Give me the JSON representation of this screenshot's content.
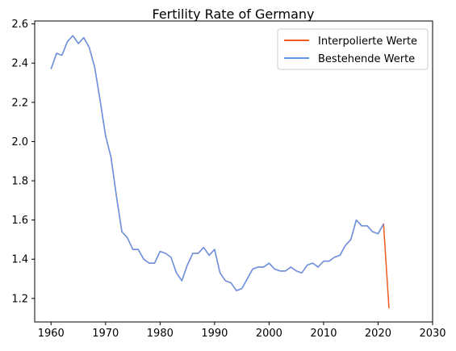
{
  "chart_data": {
    "type": "line",
    "title": "Fertility Rate of Germany",
    "xlabel": "",
    "ylabel": "",
    "xlim": [
      1957,
      2030
    ],
    "ylim": [
      1.08,
      2.615
    ],
    "xticks": [
      1960,
      1970,
      1980,
      1990,
      2000,
      2010,
      2020,
      2030
    ],
    "yticks": [
      1.2,
      1.4,
      1.6,
      1.8,
      2.0,
      2.2,
      2.4,
      2.6
    ],
    "grid": false,
    "legend_position": "top-right",
    "series": [
      {
        "name": "Interpolierte Werte",
        "color": "#f05a1e",
        "x": [
          1960,
          1961,
          1962,
          1963,
          1964,
          1965,
          1966,
          1967,
          1968,
          1969,
          1970,
          1971,
          1972,
          1973,
          1974,
          1975,
          1976,
          1977,
          1978,
          1979,
          1980,
          1981,
          1982,
          1983,
          1984,
          1985,
          1986,
          1987,
          1988,
          1989,
          1990,
          1991,
          1992,
          1993,
          1994,
          1995,
          1996,
          1997,
          1998,
          1999,
          2000,
          2001,
          2002,
          2003,
          2004,
          2005,
          2006,
          2007,
          2008,
          2009,
          2010,
          2011,
          2012,
          2013,
          2014,
          2015,
          2016,
          2017,
          2018,
          2019,
          2020,
          2021,
          2022
        ],
        "values": [
          2.37,
          2.45,
          2.44,
          2.51,
          2.54,
          2.5,
          2.53,
          2.48,
          2.38,
          2.21,
          2.03,
          1.92,
          1.72,
          1.54,
          1.51,
          1.45,
          1.45,
          1.4,
          1.38,
          1.38,
          1.44,
          1.43,
          1.41,
          1.33,
          1.29,
          1.37,
          1.43,
          1.43,
          1.46,
          1.42,
          1.45,
          1.33,
          1.29,
          1.28,
          1.24,
          1.25,
          1.3,
          1.35,
          1.36,
          1.36,
          1.38,
          1.35,
          1.34,
          1.34,
          1.36,
          1.34,
          1.33,
          1.37,
          1.38,
          1.36,
          1.39,
          1.39,
          1.41,
          1.42,
          1.47,
          1.5,
          1.6,
          1.57,
          1.57,
          1.54,
          1.53,
          1.58,
          1.15
        ]
      },
      {
        "name": "Bestehende Werte",
        "color": "#6495ed",
        "x": [
          1960,
          1961,
          1962,
          1963,
          1964,
          1965,
          1966,
          1967,
          1968,
          1969,
          1970,
          1971,
          1972,
          1973,
          1974,
          1975,
          1976,
          1977,
          1978,
          1979,
          1980,
          1981,
          1982,
          1983,
          1984,
          1985,
          1986,
          1987,
          1988,
          1989,
          1990,
          1991,
          1992,
          1993,
          1994,
          1995,
          1996,
          1997,
          1998,
          1999,
          2000,
          2001,
          2002,
          2003,
          2004,
          2005,
          2006,
          2007,
          2008,
          2009,
          2010,
          2011,
          2012,
          2013,
          2014,
          2015,
          2016,
          2017,
          2018,
          2019,
          2020,
          2021
        ],
        "values": [
          2.37,
          2.45,
          2.44,
          2.51,
          2.54,
          2.5,
          2.53,
          2.48,
          2.38,
          2.21,
          2.03,
          1.92,
          1.72,
          1.54,
          1.51,
          1.45,
          1.45,
          1.4,
          1.38,
          1.38,
          1.44,
          1.43,
          1.41,
          1.33,
          1.29,
          1.37,
          1.43,
          1.43,
          1.46,
          1.42,
          1.45,
          1.33,
          1.29,
          1.28,
          1.24,
          1.25,
          1.3,
          1.35,
          1.36,
          1.36,
          1.38,
          1.35,
          1.34,
          1.34,
          1.36,
          1.34,
          1.33,
          1.37,
          1.38,
          1.36,
          1.39,
          1.39,
          1.41,
          1.42,
          1.47,
          1.5,
          1.6,
          1.57,
          1.57,
          1.54,
          1.53,
          1.58
        ]
      }
    ]
  }
}
